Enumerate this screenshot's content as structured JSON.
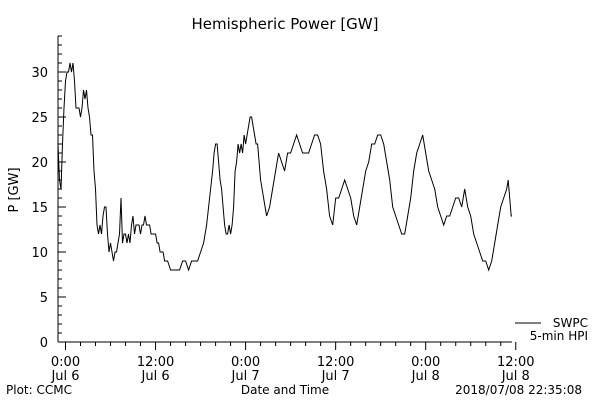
{
  "chart_data": {
    "type": "line",
    "title": "Hemispheric Power [GW]",
    "xlabel": "Date and Time",
    "ylabel": "P [GW]",
    "ylim": [
      0,
      34
    ],
    "yticks": [
      0,
      5,
      10,
      15,
      20,
      25,
      30
    ],
    "y_minor_step": 1,
    "xlim_hours": [
      -1,
      59.5
    ],
    "xticks": [
      {
        "hour": 0,
        "time": "0:00",
        "date": "Jul 6"
      },
      {
        "hour": 12,
        "time": "12:00",
        "date": "Jul 6"
      },
      {
        "hour": 24,
        "time": "0:00",
        "date": "Jul 7"
      },
      {
        "hour": 36,
        "time": "12:00",
        "date": "Jul 7"
      },
      {
        "hour": 48,
        "time": "0:00",
        "date": "Jul 8"
      },
      {
        "hour": 60,
        "time": "12:00",
        "date": "Jul 8"
      }
    ],
    "x_minor_step_hours": 2,
    "grid": false,
    "legend": {
      "placement": "bottom-right",
      "entries": [
        "SWPC",
        "5-min HPI"
      ]
    },
    "series": [
      {
        "name": "SWPC",
        "color": "#000000",
        "points": [
          [
            -1.0,
            22
          ],
          [
            -0.8,
            18
          ],
          [
            -0.6,
            17
          ],
          [
            -0.4,
            22
          ],
          [
            -0.2,
            26
          ],
          [
            0.0,
            29
          ],
          [
            0.2,
            30
          ],
          [
            0.4,
            30
          ],
          [
            0.6,
            31
          ],
          [
            0.8,
            30
          ],
          [
            1.0,
            31
          ],
          [
            1.2,
            29
          ],
          [
            1.4,
            26
          ],
          [
            1.6,
            26
          ],
          [
            1.8,
            26
          ],
          [
            2.0,
            25
          ],
          [
            2.2,
            26
          ],
          [
            2.4,
            28
          ],
          [
            2.6,
            27
          ],
          [
            2.8,
            28
          ],
          [
            3.0,
            26
          ],
          [
            3.2,
            25
          ],
          [
            3.4,
            23
          ],
          [
            3.6,
            23
          ],
          [
            3.8,
            19
          ],
          [
            4.0,
            17
          ],
          [
            4.2,
            13
          ],
          [
            4.4,
            12
          ],
          [
            4.6,
            13
          ],
          [
            4.8,
            12
          ],
          [
            5.0,
            14
          ],
          [
            5.2,
            15
          ],
          [
            5.4,
            15
          ],
          [
            5.6,
            12
          ],
          [
            5.8,
            10
          ],
          [
            6.0,
            11
          ],
          [
            6.2,
            10
          ],
          [
            6.4,
            9
          ],
          [
            6.6,
            10
          ],
          [
            6.8,
            10
          ],
          [
            7.0,
            11
          ],
          [
            7.2,
            12
          ],
          [
            7.4,
            16
          ],
          [
            7.6,
            11
          ],
          [
            7.8,
            12
          ],
          [
            8.0,
            12
          ],
          [
            8.2,
            11
          ],
          [
            8.4,
            12
          ],
          [
            8.6,
            11
          ],
          [
            8.8,
            13
          ],
          [
            9.0,
            14
          ],
          [
            9.2,
            12
          ],
          [
            9.4,
            13
          ],
          [
            9.6,
            13
          ],
          [
            9.8,
            13
          ],
          [
            10.0,
            12
          ],
          [
            10.2,
            13
          ],
          [
            10.4,
            13
          ],
          [
            10.6,
            14
          ],
          [
            10.8,
            13
          ],
          [
            11.0,
            13
          ],
          [
            11.2,
            13
          ],
          [
            11.4,
            12
          ],
          [
            11.6,
            12
          ],
          [
            11.8,
            12
          ],
          [
            12.0,
            12
          ],
          [
            12.2,
            11
          ],
          [
            12.4,
            11
          ],
          [
            12.6,
            10
          ],
          [
            12.8,
            10
          ],
          [
            13.0,
            10
          ],
          [
            13.2,
            9
          ],
          [
            13.6,
            9
          ],
          [
            14.0,
            8
          ],
          [
            14.4,
            8
          ],
          [
            14.8,
            8
          ],
          [
            15.2,
            8
          ],
          [
            15.6,
            9
          ],
          [
            16.0,
            9
          ],
          [
            16.4,
            8
          ],
          [
            16.8,
            9
          ],
          [
            17.2,
            9
          ],
          [
            17.6,
            9
          ],
          [
            18.0,
            10
          ],
          [
            18.4,
            11
          ],
          [
            18.8,
            13
          ],
          [
            19.2,
            16
          ],
          [
            19.6,
            19
          ],
          [
            19.8,
            21
          ],
          [
            20.0,
            22
          ],
          [
            20.2,
            22
          ],
          [
            20.4,
            20
          ],
          [
            20.6,
            18
          ],
          [
            20.8,
            17
          ],
          [
            21.0,
            15
          ],
          [
            21.2,
            13
          ],
          [
            21.4,
            12
          ],
          [
            21.6,
            12
          ],
          [
            21.8,
            13
          ],
          [
            22.0,
            12
          ],
          [
            22.2,
            13
          ],
          [
            22.4,
            15
          ],
          [
            22.6,
            19
          ],
          [
            22.8,
            20
          ],
          [
            23.0,
            22
          ],
          [
            23.2,
            21
          ],
          [
            23.4,
            22
          ],
          [
            23.6,
            21
          ],
          [
            23.8,
            23
          ],
          [
            24.0,
            22
          ],
          [
            24.2,
            23
          ],
          [
            24.4,
            24
          ],
          [
            24.6,
            25
          ],
          [
            24.8,
            25
          ],
          [
            25.0,
            24
          ],
          [
            25.2,
            23
          ],
          [
            25.4,
            22
          ],
          [
            25.6,
            22
          ],
          [
            25.8,
            20
          ],
          [
            26.0,
            18
          ],
          [
            26.4,
            16
          ],
          [
            26.8,
            14
          ],
          [
            27.2,
            15
          ],
          [
            27.6,
            17
          ],
          [
            28.0,
            19
          ],
          [
            28.4,
            21
          ],
          [
            28.8,
            20
          ],
          [
            29.2,
            19
          ],
          [
            29.6,
            21
          ],
          [
            30.0,
            21
          ],
          [
            30.4,
            22
          ],
          [
            30.8,
            23
          ],
          [
            31.2,
            22
          ],
          [
            31.6,
            21
          ],
          [
            32.0,
            21
          ],
          [
            32.4,
            21
          ],
          [
            32.8,
            22
          ],
          [
            33.2,
            23
          ],
          [
            33.6,
            23
          ],
          [
            34.0,
            22
          ],
          [
            34.4,
            19
          ],
          [
            34.8,
            17
          ],
          [
            35.2,
            14
          ],
          [
            35.6,
            13
          ],
          [
            36.0,
            16
          ],
          [
            36.4,
            16
          ],
          [
            36.8,
            17
          ],
          [
            37.2,
            18
          ],
          [
            37.6,
            17
          ],
          [
            38.0,
            16
          ],
          [
            38.4,
            14
          ],
          [
            38.8,
            13
          ],
          [
            39.2,
            15
          ],
          [
            39.6,
            17
          ],
          [
            40.0,
            19
          ],
          [
            40.4,
            20
          ],
          [
            40.8,
            22
          ],
          [
            41.2,
            22
          ],
          [
            41.6,
            23
          ],
          [
            42.0,
            23
          ],
          [
            42.4,
            22
          ],
          [
            42.8,
            20
          ],
          [
            43.2,
            18
          ],
          [
            43.6,
            15
          ],
          [
            44.0,
            14
          ],
          [
            44.4,
            13
          ],
          [
            44.8,
            12
          ],
          [
            45.2,
            12
          ],
          [
            45.6,
            14
          ],
          [
            46.0,
            16
          ],
          [
            46.4,
            19
          ],
          [
            46.8,
            21
          ],
          [
            47.2,
            22
          ],
          [
            47.6,
            23
          ],
          [
            48.0,
            21
          ],
          [
            48.4,
            19
          ],
          [
            48.8,
            18
          ],
          [
            49.2,
            17
          ],
          [
            49.6,
            15
          ],
          [
            50.0,
            14
          ],
          [
            50.4,
            13
          ],
          [
            50.8,
            14
          ],
          [
            51.2,
            14
          ],
          [
            51.6,
            15
          ],
          [
            52.0,
            16
          ],
          [
            52.4,
            16
          ],
          [
            52.8,
            15
          ],
          [
            53.2,
            17
          ],
          [
            53.6,
            15
          ],
          [
            54.0,
            14
          ],
          [
            54.4,
            12
          ],
          [
            54.8,
            11
          ],
          [
            55.2,
            10
          ],
          [
            55.6,
            9
          ],
          [
            56.0,
            9
          ],
          [
            56.4,
            8
          ],
          [
            56.8,
            9
          ],
          [
            57.2,
            11
          ],
          [
            57.6,
            13
          ],
          [
            58.0,
            15
          ],
          [
            58.4,
            16
          ],
          [
            58.8,
            17
          ],
          [
            59.0,
            18
          ],
          [
            59.2,
            16
          ],
          [
            59.4,
            14
          ],
          [
            59.5,
            14
          ]
        ]
      }
    ]
  },
  "footer": {
    "plot_source": "Plot: CCMC",
    "timestamp": "2018/07/08 22:35:08"
  }
}
